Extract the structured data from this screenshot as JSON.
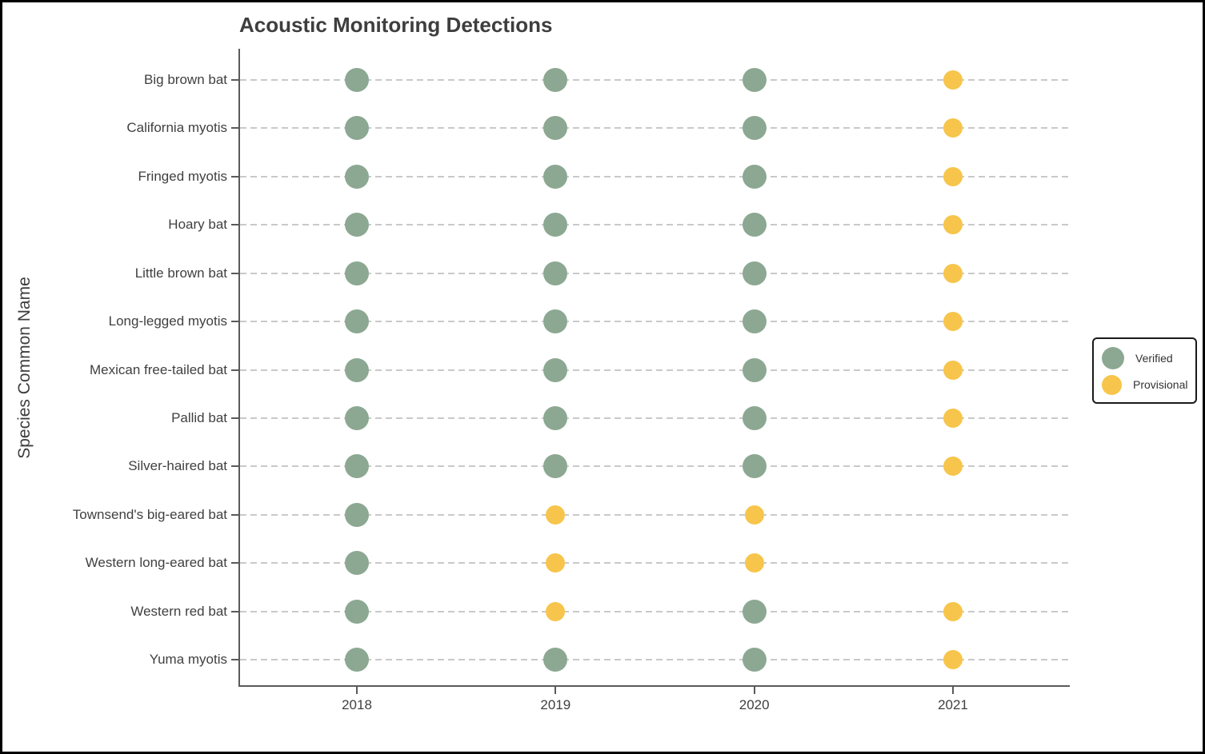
{
  "title": "Acoustic Monitoring Detections",
  "y_axis_label": "Species Common Name",
  "legend": {
    "items": [
      {
        "label": "Verified",
        "color": "#8CA892"
      },
      {
        "label": "Provisional",
        "color": "#F7C54B"
      }
    ]
  },
  "chart_data": {
    "type": "scatter",
    "title": "Acoustic Monitoring Detections",
    "xlabel": "",
    "ylabel": "Species Common Name",
    "x_categories": [
      "2018",
      "2019",
      "2020",
      "2021"
    ],
    "grid": "horizontal-dashed",
    "legend_position": "right",
    "point_colors": {
      "Verified": "#8CA892",
      "Provisional": "#F7C54B"
    },
    "rows": [
      {
        "species": "Big brown bat",
        "statuses": [
          "Verified",
          "Verified",
          "Verified",
          "Provisional"
        ]
      },
      {
        "species": "California myotis",
        "statuses": [
          "Verified",
          "Verified",
          "Verified",
          "Provisional"
        ]
      },
      {
        "species": "Fringed myotis",
        "statuses": [
          "Verified",
          "Verified",
          "Verified",
          "Provisional"
        ]
      },
      {
        "species": "Hoary bat",
        "statuses": [
          "Verified",
          "Verified",
          "Verified",
          "Provisional"
        ]
      },
      {
        "species": "Little brown bat",
        "statuses": [
          "Verified",
          "Verified",
          "Verified",
          "Provisional"
        ]
      },
      {
        "species": "Long-legged myotis",
        "statuses": [
          "Verified",
          "Verified",
          "Verified",
          "Provisional"
        ]
      },
      {
        "species": "Mexican free-tailed bat",
        "statuses": [
          "Verified",
          "Verified",
          "Verified",
          "Provisional"
        ]
      },
      {
        "species": "Pallid bat",
        "statuses": [
          "Verified",
          "Verified",
          "Verified",
          "Provisional"
        ]
      },
      {
        "species": "Silver-haired bat",
        "statuses": [
          "Verified",
          "Verified",
          "Verified",
          "Provisional"
        ]
      },
      {
        "species": "Townsend's big-eared bat",
        "statuses": [
          "Verified",
          "Provisional",
          "Provisional",
          null
        ]
      },
      {
        "species": "Western long-eared bat",
        "statuses": [
          "Verified",
          "Provisional",
          "Provisional",
          null
        ]
      },
      {
        "species": "Western red bat",
        "statuses": [
          "Verified",
          "Provisional",
          "Verified",
          "Provisional"
        ]
      },
      {
        "species": "Yuma myotis",
        "statuses": [
          "Verified",
          "Verified",
          "Verified",
          "Provisional"
        ]
      }
    ]
  }
}
